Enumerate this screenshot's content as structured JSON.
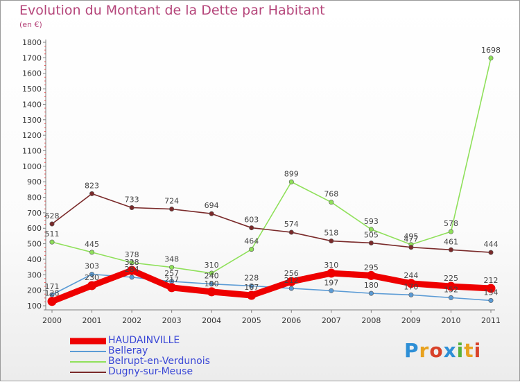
{
  "chart_data": {
    "type": "line",
    "title": "Evolution du Montant de la Dette par Habitant",
    "ylabel": "(en €)",
    "categories": [
      "2000",
      "2001",
      "2002",
      "2003",
      "2004",
      "2005",
      "2006",
      "2007",
      "2008",
      "2009",
      "2010",
      "2011"
    ],
    "ylim": [
      100,
      1800
    ],
    "yticks": [
      100,
      200,
      300,
      400,
      500,
      600,
      700,
      800,
      900,
      1000,
      1100,
      1200,
      1300,
      1400,
      1500,
      1600,
      1700,
      1800
    ],
    "grid": false,
    "legend_position": "bottom-left",
    "series": [
      {
        "name": "HAUDAINVILLE",
        "color": "#ee0000",
        "values": [
          128,
          230,
          328,
          217,
          190,
          167,
          256,
          310,
          295,
          244,
          225,
          212
        ]
      },
      {
        "name": "Belleray",
        "color": "#5b9bd5",
        "values": [
          171,
          303,
          284,
          257,
          240,
          228,
          212,
          197,
          180,
          170,
          152,
          134
        ]
      },
      {
        "name": "Belrupt-en-Verdunois",
        "color": "#8fe05a",
        "values": [
          511,
          445,
          378,
          348,
          310,
          464,
          899,
          768,
          593,
          495,
          578,
          1698
        ]
      },
      {
        "name": "Dugny-sur-Meuse",
        "color": "#7a2a2a",
        "values": [
          628,
          823,
          733,
          724,
          694,
          603,
          574,
          518,
          505,
          477,
          461,
          444
        ]
      }
    ]
  },
  "logo": {
    "letters": [
      "P",
      "r",
      "o",
      "x",
      "i",
      "t",
      "i"
    ]
  }
}
